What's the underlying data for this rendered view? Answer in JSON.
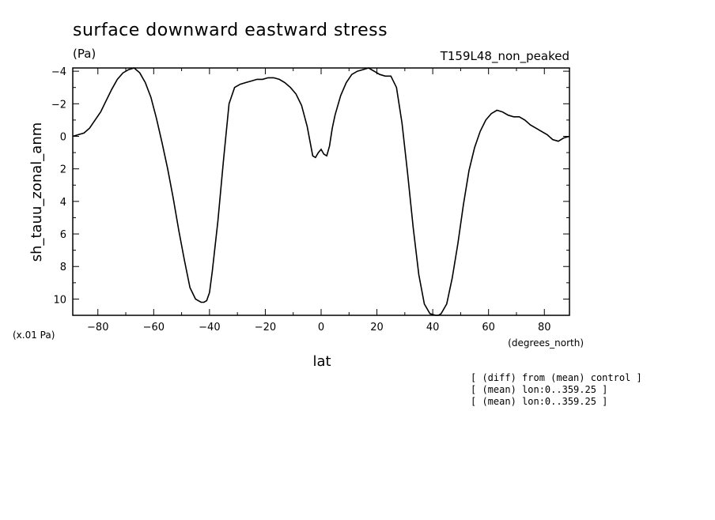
{
  "chart_data": {
    "type": "line",
    "title": "surface downward eastward stress",
    "units": "(Pa)",
    "experiment": "T159L48_non_peaked",
    "ylabel": "sh_tauu_zonal_anm",
    "xlabel": "lat",
    "x_units": "(degrees_north)",
    "y_scale_note": "(x.01 Pa)",
    "xlim": [
      -89,
      89
    ],
    "ylim": [
      11,
      -4.2
    ],
    "y_inverted": true,
    "x_ticks": [
      -80,
      -60,
      -40,
      -20,
      0,
      20,
      40,
      60,
      80
    ],
    "y_ticks": [
      -4,
      -2,
      0,
      2,
      4,
      6,
      8,
      10
    ],
    "grid": false,
    "legend": "none",
    "annotations": [
      "[ (diff) from (mean) control ]",
      "[ (mean) lon:0..359.25 ]",
      "[ (mean) lon:0..359.25 ]"
    ],
    "series": [
      {
        "color": "#000000",
        "x": [
          -89,
          -87,
          -85,
          -83,
          -81,
          -79,
          -77,
          -75,
          -73,
          -71,
          -69,
          -67,
          -65,
          -63,
          -61,
          -59,
          -57,
          -55,
          -53,
          -51,
          -49,
          -47,
          -45,
          -43,
          -42,
          -41,
          -40,
          -39,
          -37,
          -35,
          -33,
          -31,
          -29,
          -27,
          -25,
          -23,
          -21,
          -19,
          -17,
          -15,
          -13,
          -11,
          -9,
          -7,
          -5,
          -4,
          -3,
          -2,
          -1,
          0,
          1,
          2,
          3,
          4,
          5,
          7,
          9,
          11,
          13,
          15,
          17,
          19,
          21,
          23,
          25,
          27,
          29,
          31,
          33,
          35,
          37,
          39,
          41,
          42,
          43,
          45,
          47,
          49,
          51,
          53,
          55,
          57,
          59,
          61,
          63,
          65,
          67,
          69,
          71,
          73,
          75,
          77,
          79,
          81,
          83,
          85,
          87,
          89
        ],
        "y": [
          0.0,
          -0.1,
          -0.2,
          -0.5,
          -1.0,
          -1.5,
          -2.2,
          -2.9,
          -3.5,
          -3.9,
          -4.1,
          -4.2,
          -3.9,
          -3.3,
          -2.4,
          -1.1,
          0.4,
          2.0,
          3.8,
          5.8,
          7.6,
          9.3,
          10.0,
          10.2,
          10.2,
          10.1,
          9.6,
          8.3,
          5.2,
          1.5,
          -2.0,
          -3.0,
          -3.2,
          -3.3,
          -3.4,
          -3.5,
          -3.5,
          -3.6,
          -3.6,
          -3.5,
          -3.3,
          -3.0,
          -2.6,
          -1.9,
          -0.6,
          0.3,
          1.2,
          1.3,
          1.0,
          0.8,
          1.1,
          1.2,
          0.6,
          -0.5,
          -1.3,
          -2.5,
          -3.3,
          -3.8,
          -4.0,
          -4.1,
          -4.2,
          -4.0,
          -3.8,
          -3.7,
          -3.7,
          -3.0,
          -0.8,
          2.3,
          5.6,
          8.5,
          10.3,
          10.9,
          11.0,
          11.0,
          10.9,
          10.3,
          8.7,
          6.6,
          4.2,
          2.1,
          0.7,
          -0.3,
          -1.0,
          -1.4,
          -1.6,
          -1.5,
          -1.3,
          -1.2,
          -1.2,
          -1.0,
          -0.7,
          -0.5,
          -0.3,
          -0.1,
          0.2,
          0.3,
          0.1,
          0.0
        ]
      }
    ]
  }
}
